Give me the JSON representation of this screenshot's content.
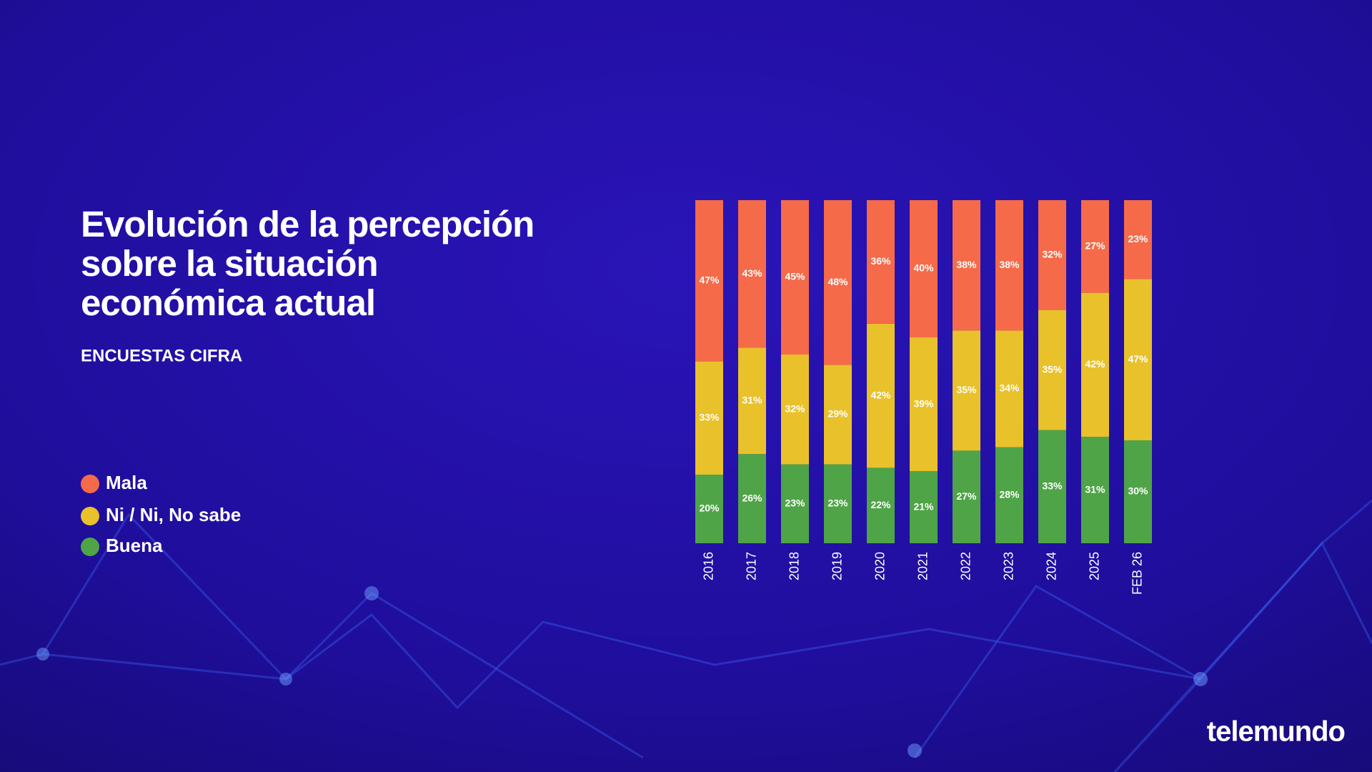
{
  "chart_data": {
    "type": "stacked_bar",
    "title": "Evolución de la percepción sobre la situación económica actual",
    "subtitle": "ENCUESTAS CIFRA",
    "categories": [
      "2016",
      "2017",
      "2018",
      "2019",
      "2020",
      "2021",
      "2022",
      "2023",
      "2024",
      "2025",
      "FEB 26"
    ],
    "ylim": [
      0,
      100
    ],
    "series": [
      {
        "name": "Buena",
        "color": "#4fa447",
        "values": [
          20,
          26,
          23,
          23,
          22,
          21,
          27,
          28,
          33,
          31,
          30
        ],
        "value_labels": [
          "20%",
          "26%",
          "23%",
          "23%",
          "22%",
          "21%",
          "27%",
          "28%",
          "33%",
          "31%",
          "30%"
        ]
      },
      {
        "name": "Ni / Ni, No sabe",
        "color": "#e9c12b",
        "values": [
          33,
          31,
          32,
          29,
          42,
          39,
          35,
          34,
          35,
          42,
          47
        ],
        "value_labels": [
          "33%",
          "31%",
          "32%",
          "29%",
          "42%",
          "39%",
          "35%",
          "34%",
          "35%",
          "42%",
          "47%"
        ]
      },
      {
        "name": "Mala",
        "color": "#f56a49",
        "values": [
          47,
          43,
          45,
          48,
          36,
          40,
          38,
          38,
          32,
          27,
          23
        ],
        "value_labels": [
          "47%",
          "43%",
          "45%",
          "48%",
          "36%",
          "40%",
          "38%",
          "38%",
          "32%",
          "27%",
          "23%"
        ]
      }
    ]
  },
  "brand": "telemundo"
}
